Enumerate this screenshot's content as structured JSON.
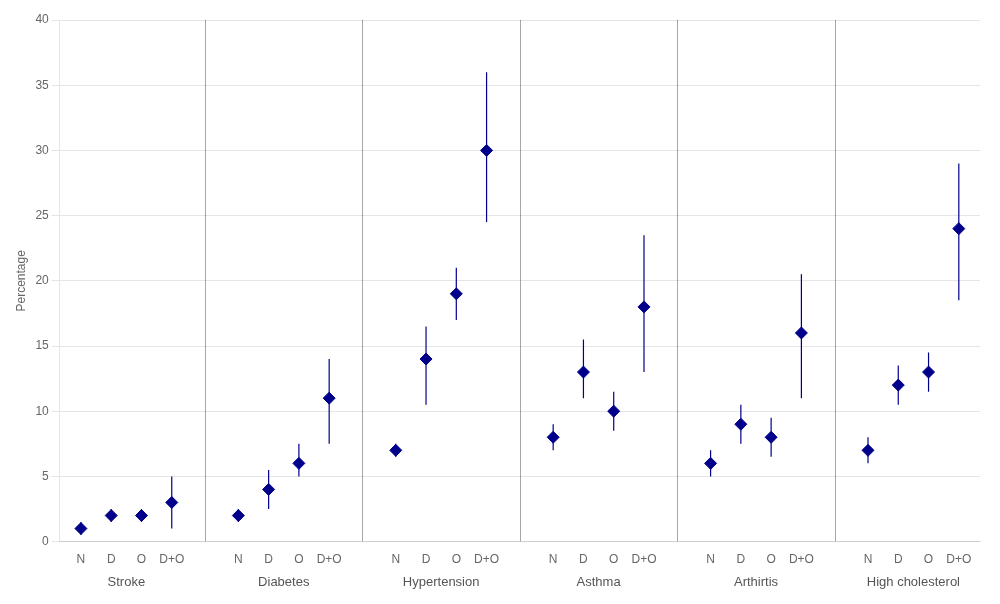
{
  "chart_data": {
    "type": "dot",
    "ylabel": "Percentage",
    "categories": [
      "N",
      "D",
      "O",
      "D+O"
    ],
    "groups": [
      {
        "name": "Stroke",
        "values": [
          1.0,
          2.0,
          2.0,
          3.0
        ],
        "ci_lower": [
          0.5,
          1.5,
          1.5,
          1.0
        ],
        "ci_upper": [
          1.5,
          2.5,
          2.5,
          5.0
        ]
      },
      {
        "name": "Diabetes",
        "values": [
          2.0,
          4.0,
          6.0,
          11.0
        ],
        "ci_lower": [
          1.5,
          2.5,
          5.0,
          7.5
        ],
        "ci_upper": [
          2.5,
          5.5,
          7.5,
          14.0
        ]
      },
      {
        "name": "Hypertension",
        "values": [
          7.0,
          14.0,
          19.0,
          30.0
        ],
        "ci_lower": [
          6.5,
          10.5,
          17.0,
          24.5
        ],
        "ci_upper": [
          7.5,
          16.5,
          21.0,
          36.0
        ]
      },
      {
        "name": "Asthma",
        "values": [
          8.0,
          13.0,
          10.0,
          18.0
        ],
        "ci_lower": [
          7.0,
          11.0,
          8.5,
          13.0
        ],
        "ci_upper": [
          9.0,
          15.5,
          11.5,
          23.5
        ]
      },
      {
        "name": "Arthirtis",
        "values": [
          6.0,
          9.0,
          8.0,
          16.0
        ],
        "ci_lower": [
          5.0,
          7.5,
          6.5,
          11.0
        ],
        "ci_upper": [
          7.0,
          10.5,
          9.5,
          20.5
        ]
      },
      {
        "name": "High cholesterol",
        "values": [
          7.0,
          12.0,
          13.0,
          24.0
        ],
        "ci_lower": [
          6.0,
          10.5,
          11.5,
          18.5
        ],
        "ci_upper": [
          8.0,
          13.5,
          14.5,
          29.0
        ]
      }
    ],
    "color": "#00008B",
    "marker": "diamond",
    "ylim": [
      0,
      40
    ],
    "yticks": [
      0,
      5,
      10,
      15,
      20,
      25,
      30,
      35,
      40
    ],
    "grid": true
  }
}
